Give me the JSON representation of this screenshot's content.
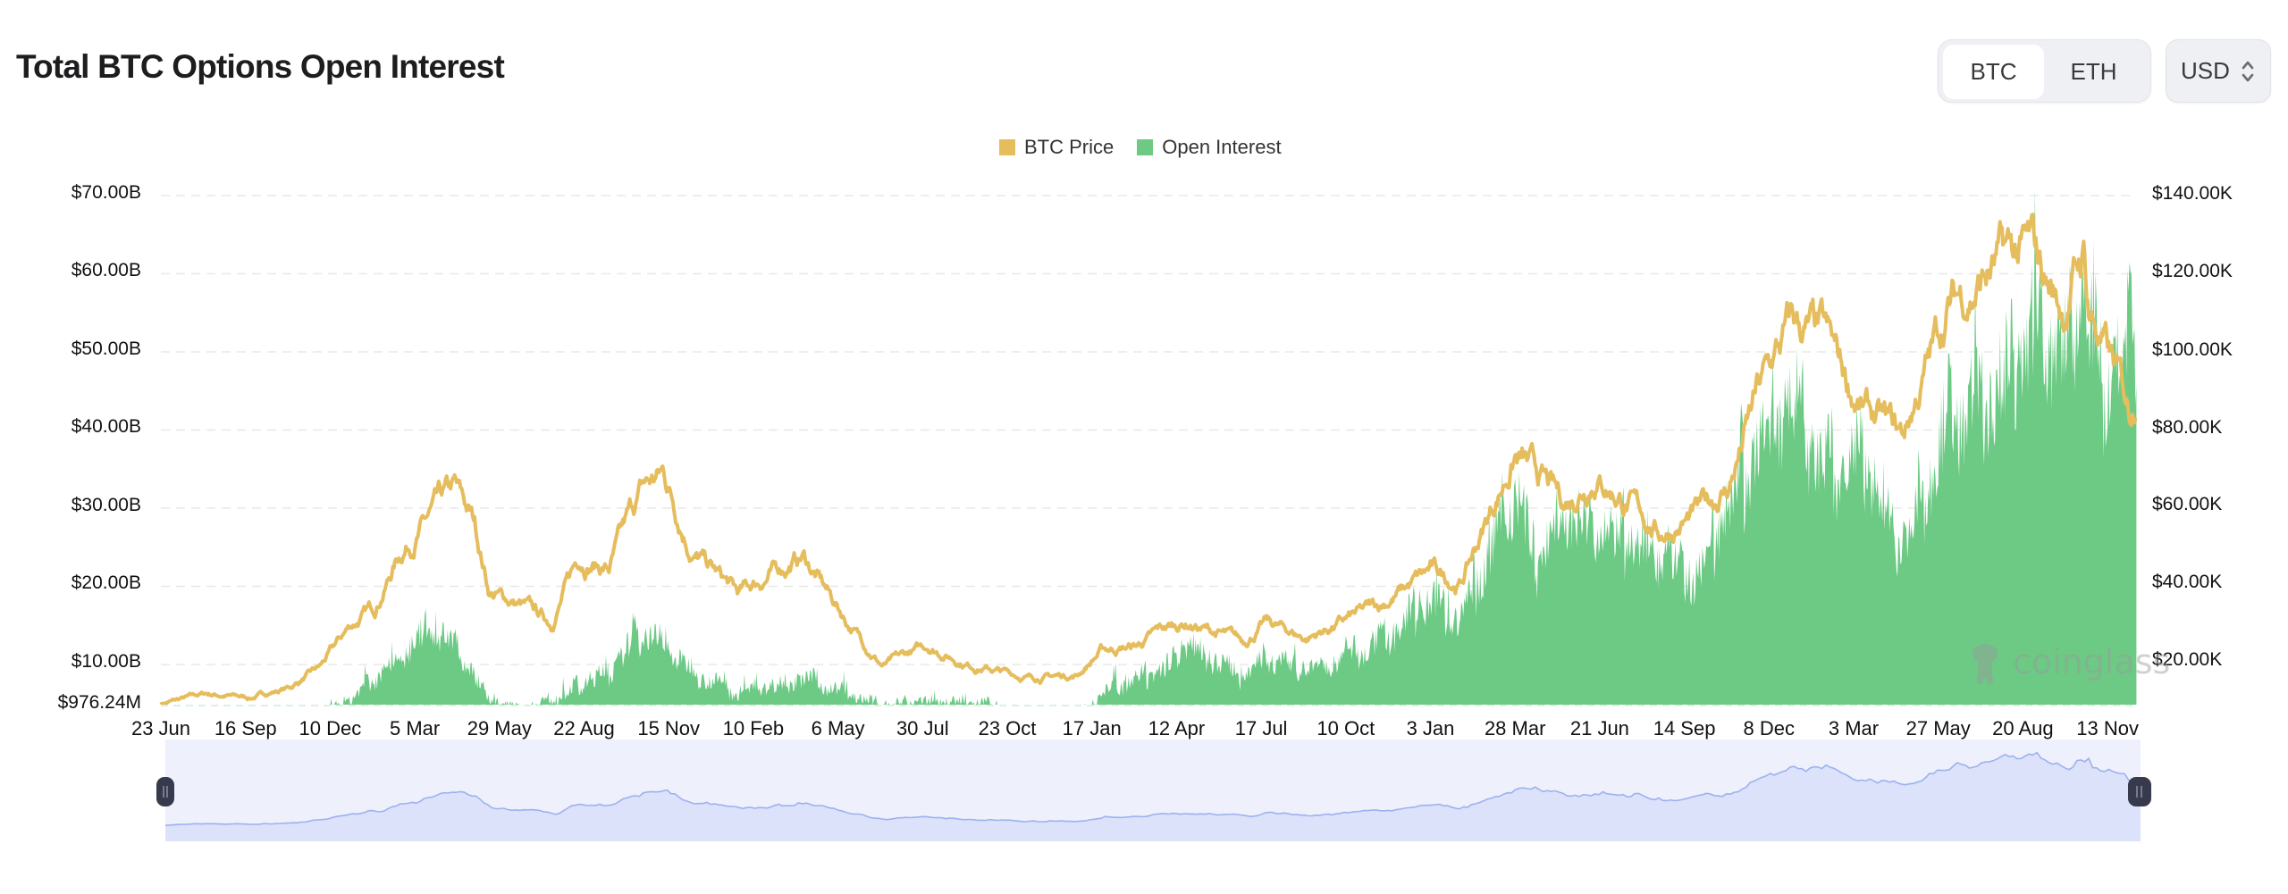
{
  "header": {
    "title": "Total BTC Options Open Interest",
    "asset_toggle": {
      "options": [
        "BTC",
        "ETH"
      ],
      "selected": "BTC"
    },
    "currency_select": {
      "value": "USD"
    }
  },
  "legend": [
    {
      "label": "BTC Price",
      "color": "#e5bd5c"
    },
    {
      "label": "Open Interest",
      "color": "#6cca85"
    }
  ],
  "watermark": "coinglass",
  "colors": {
    "price_line": "#e5bd5c",
    "oi_area": "#6cca85",
    "grid": "#e9e9ec",
    "slider_bg": "#eef1fc",
    "slider_area": "#dce2fa",
    "slider_line": "#9db1ef",
    "slider_handle": "#363a4c"
  },
  "chart_data": {
    "type": "line+area",
    "title": "Total BTC Options Open Interest",
    "series": [
      {
        "name": "BTC Price",
        "type": "line",
        "axis": "right",
        "unit": "USD thousands",
        "points": [
          [
            0,
            9.3
          ],
          [
            45,
            11.8
          ],
          [
            90,
            10.8
          ],
          [
            130,
            13.5
          ],
          [
            160,
            18.5
          ],
          [
            190,
            29
          ],
          [
            215,
            34
          ],
          [
            240,
            48
          ],
          [
            270,
            57
          ],
          [
            295,
            63
          ],
          [
            315,
            55
          ],
          [
            330,
            38
          ],
          [
            365,
            34
          ],
          [
            392,
            30
          ],
          [
            420,
            47
          ],
          [
            450,
            44
          ],
          [
            484,
            64
          ],
          [
            505,
            68
          ],
          [
            535,
            48
          ],
          [
            580,
            37
          ],
          [
            610,
            42
          ],
          [
            645,
            47
          ],
          [
            690,
            30
          ],
          [
            725,
            19
          ],
          [
            770,
            24
          ],
          [
            810,
            19.5
          ],
          [
            870,
            16
          ],
          [
            920,
            16.6
          ],
          [
            945,
            23
          ],
          [
            980,
            24
          ],
          [
            1005,
            28
          ],
          [
            1030,
            30
          ],
          [
            1087,
            25
          ],
          [
            1110,
            30
          ],
          [
            1150,
            26
          ],
          [
            1225,
            34.5
          ],
          [
            1275,
            43
          ],
          [
            1305,
            40
          ],
          [
            1360,
            73
          ],
          [
            1410,
            60
          ],
          [
            1440,
            69
          ],
          [
            1505,
            53
          ],
          [
            1540,
            57
          ],
          [
            1575,
            65
          ],
          [
            1603,
            88
          ],
          [
            1638,
            106
          ],
          [
            1670,
            102
          ],
          [
            1710,
            84
          ],
          [
            1749,
            77
          ],
          [
            1795,
            111
          ],
          [
            1847,
            122
          ],
          [
            1878,
            124
          ],
          [
            1910,
            110
          ],
          [
            1931,
            125
          ],
          [
            1936,
            111
          ],
          [
            1977,
            84
          ],
          [
            1984,
            91
          ]
        ]
      },
      {
        "name": "Open Interest",
        "type": "area",
        "axis": "left",
        "unit": "USD billions",
        "points": [
          [
            0,
            0.9
          ],
          [
            45,
            1.5
          ],
          [
            110,
            2.0
          ],
          [
            160,
            3.5
          ],
          [
            190,
            6
          ],
          [
            215,
            9
          ],
          [
            240,
            12
          ],
          [
            270,
            16
          ],
          [
            295,
            14
          ],
          [
            330,
            6
          ],
          [
            365,
            5
          ],
          [
            392,
            6
          ],
          [
            420,
            8
          ],
          [
            450,
            10
          ],
          [
            484,
            16
          ],
          [
            505,
            14
          ],
          [
            535,
            10
          ],
          [
            580,
            7
          ],
          [
            645,
            9
          ],
          [
            690,
            7
          ],
          [
            725,
            5
          ],
          [
            770,
            6
          ],
          [
            830,
            5.5
          ],
          [
            870,
            4
          ],
          [
            920,
            3.5
          ],
          [
            945,
            7
          ],
          [
            1005,
            10
          ],
          [
            1030,
            14
          ],
          [
            1087,
            9
          ],
          [
            1110,
            12
          ],
          [
            1150,
            10
          ],
          [
            1225,
            14
          ],
          [
            1275,
            20
          ],
          [
            1305,
            17
          ],
          [
            1360,
            36
          ],
          [
            1380,
            25
          ],
          [
            1410,
            33
          ],
          [
            1440,
            30
          ],
          [
            1505,
            27
          ],
          [
            1540,
            23
          ],
          [
            1575,
            34
          ],
          [
            1603,
            41
          ],
          [
            1638,
            48
          ],
          [
            1670,
            38
          ],
          [
            1710,
            40
          ],
          [
            1749,
            28
          ],
          [
            1795,
            45
          ],
          [
            1847,
            50
          ],
          [
            1878,
            58
          ],
          [
            1910,
            55
          ],
          [
            1931,
            65.9
          ],
          [
            1950,
            50
          ],
          [
            1984,
            56.5
          ]
        ]
      }
    ],
    "x_start_date": "23 Jun",
    "x_tick_labels": [
      "23 Jun",
      "16 Sep",
      "10 Dec",
      "5 Mar",
      "29 May",
      "22 Aug",
      "15 Nov",
      "10 Feb",
      "6 May",
      "30 Jul",
      "23 Oct",
      "17 Jan",
      "12 Apr",
      "17 Jul",
      "10 Oct",
      "3 Jan",
      "28 Mar",
      "21 Jun",
      "14 Sep",
      "8 Dec",
      "3 Mar",
      "27 May",
      "20 Aug",
      "13 Nov"
    ],
    "x_tick_interval_days": 85,
    "y_left_labels": [
      "$70.00B",
      "$60.00B",
      "$50.00B",
      "$40.00B",
      "$30.00B",
      "$20.00B",
      "$10.00B",
      "$976.24M"
    ],
    "y_right_labels": [
      "$140.00K",
      "$120.00K",
      "$100.00K",
      "$80.00K",
      "$60.00K",
      "$40.00K",
      "$20.00K"
    ],
    "ylim_left": [
      0.97624,
      70
    ],
    "ylim_right": [
      9,
      140
    ],
    "ylabel_left": "Open Interest",
    "ylabel_right": "BTC Price",
    "grid": true,
    "legend_position": "top-center"
  }
}
